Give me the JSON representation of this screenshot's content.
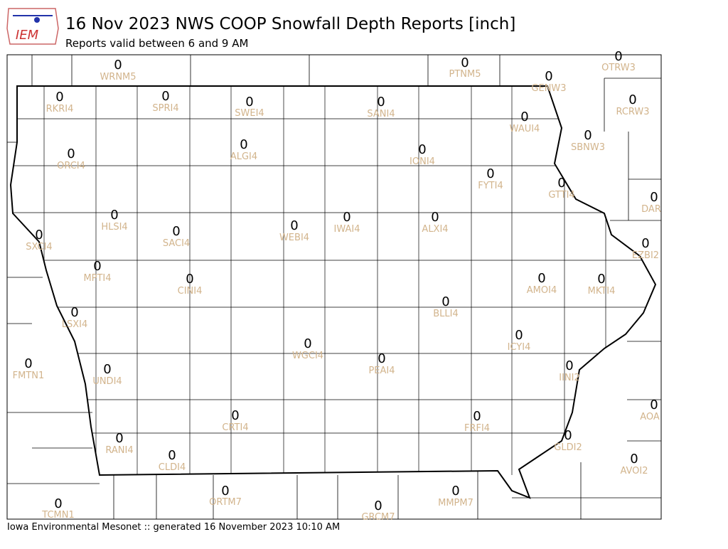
{
  "header": {
    "logo": "IEM",
    "title": "16 Nov 2023 NWS COOP Snowfall Depth Reports [inch]",
    "subtitle": "Reports valid between 6 and 9 AM"
  },
  "stations": [
    {
      "id": "WRNM5",
      "value": 0
    },
    {
      "id": "PTNM5",
      "value": 0
    },
    {
      "id": "OTRW3",
      "value": 0
    },
    {
      "id": "GENW3",
      "value": 0
    },
    {
      "id": "RKRI4",
      "value": 0
    },
    {
      "id": "SPRI4",
      "value": 0
    },
    {
      "id": "SWEI4",
      "value": 0
    },
    {
      "id": "SANI4",
      "value": 0
    },
    {
      "id": "RCRW3",
      "value": 0
    },
    {
      "id": "WAUI4",
      "value": 0
    },
    {
      "id": "SBNW3",
      "value": 0
    },
    {
      "id": "ORCI4",
      "value": 0
    },
    {
      "id": "ALGI4",
      "value": 0
    },
    {
      "id": "IONI4",
      "value": 0
    },
    {
      "id": "FYTI4",
      "value": 0
    },
    {
      "id": "GTTI4",
      "value": 0
    },
    {
      "id": "DAR",
      "value": 0
    },
    {
      "id": "HLSI4",
      "value": 0
    },
    {
      "id": "SACI4",
      "value": 0
    },
    {
      "id": "WEBI4",
      "value": 0
    },
    {
      "id": "IWAI4",
      "value": 0
    },
    {
      "id": "ALXI4",
      "value": 0
    },
    {
      "id": "SXCI4",
      "value": 0
    },
    {
      "id": "EZBI2",
      "value": 0
    },
    {
      "id": "MPTI4",
      "value": 0
    },
    {
      "id": "CINI4",
      "value": 0
    },
    {
      "id": "AMOI4",
      "value": 0
    },
    {
      "id": "MKTI4",
      "value": 0
    },
    {
      "id": "BLLI4",
      "value": 0
    },
    {
      "id": "LSXI4",
      "value": 0
    },
    {
      "id": "ICYI4",
      "value": 0
    },
    {
      "id": "WGCI4",
      "value": 0
    },
    {
      "id": "PEAI4",
      "value": 0
    },
    {
      "id": "FMTN1",
      "value": 0
    },
    {
      "id": "UNDI4",
      "value": 0
    },
    {
      "id": "IINI2",
      "value": 0
    },
    {
      "id": "AOA",
      "value": 0
    },
    {
      "id": "CRTI4",
      "value": 0
    },
    {
      "id": "FRFI4",
      "value": 0
    },
    {
      "id": "RANI4",
      "value": 0
    },
    {
      "id": "CLDI4",
      "value": 0
    },
    {
      "id": "GLDI2",
      "value": 0
    },
    {
      "id": "AVOI2",
      "value": 0
    },
    {
      "id": "ORTM7",
      "value": 0
    },
    {
      "id": "MMPM7",
      "value": 0
    },
    {
      "id": "TCMN1",
      "value": 0
    },
    {
      "id": "GRCM7",
      "value": 0
    }
  ],
  "footer": "Iowa Environmental Mesonet :: generated 16 November 2023 10:10 AM"
}
